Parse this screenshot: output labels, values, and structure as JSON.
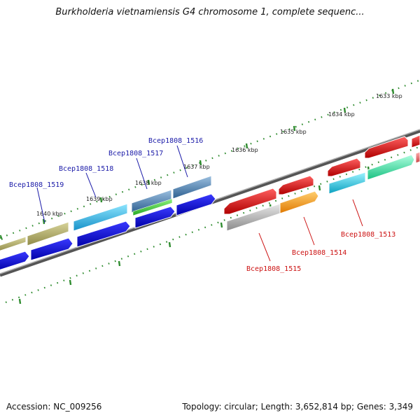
{
  "title": "Burkholderia vietnamiensis G4 chromosome 1, complete sequenc...",
  "accession": "Accession: NC_009256",
  "topology": "Topology: circular; Length: 3,652,814 bp; Genes: 3,349",
  "kbp_labels": [
    "1633 kbp",
    "1634 kbp",
    "1635 kbp",
    "1636 kbp",
    "1637 kbp",
    "1638 kbp",
    "1639 kbp",
    "1640 kbp"
  ],
  "gene_labels_upper": [
    "Bcep1808_1516",
    "Bcep1808_1517",
    "Bcep1808_1518",
    "Bcep1808_1519"
  ],
  "gene_labels_lower": [
    "Bcep1808_1513",
    "Bcep1808_1514",
    "Bcep1808_1515"
  ],
  "colors": {
    "tick": "#2e8b2e",
    "axis": "#808080",
    "olive": "#b5b06a",
    "cyan": "#22b8e8",
    "steel": "#4a82b8",
    "blue": "#1010e0",
    "red": "#e81010",
    "orange": "#f59a10",
    "grey": "#b8b8b8",
    "teal": "#16c4d8",
    "mint": "#30e6a8",
    "pink": "#e46a6a"
  }
}
